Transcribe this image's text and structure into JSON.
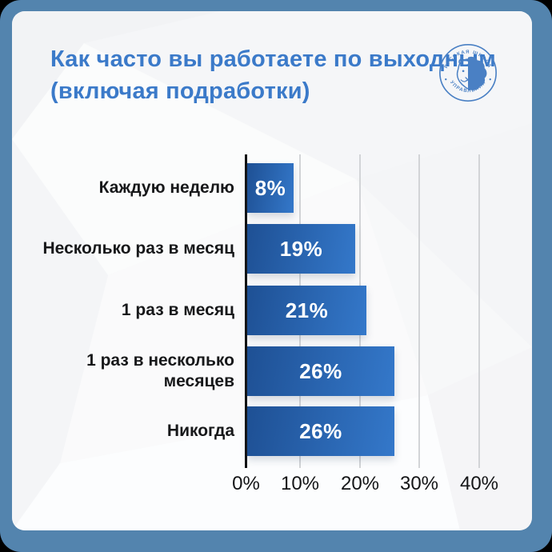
{
  "frame": {
    "background": "#5384ae",
    "card_background": "#f7f8f9"
  },
  "header": {
    "title": "Как часто вы работаете по выходным (включая подработки)",
    "title_color": "#3b7ac9"
  },
  "logo": {
    "name": "russian-school-of-management-seal",
    "arc_top": "РУССКАЯ ШКОЛА",
    "arc_bottom": "УПРАВЛЕНИЯ",
    "color": "#4a80c4",
    "icon": "lion-icon"
  },
  "chart_data": {
    "type": "bar",
    "orientation": "horizontal",
    "title": "Как часто вы работаете по выходным (включая подработки)",
    "categories": [
      "Каждую неделю",
      "Несколько раз в месяц",
      "1 раз в месяц",
      "1 раз в несколько месяцев",
      "Никогда"
    ],
    "values": [
      8,
      19,
      21,
      26,
      26
    ],
    "value_labels": [
      "8%",
      "19%",
      "21%",
      "26%",
      "26%"
    ],
    "x_ticks": [
      "0%",
      "10%",
      "20%",
      "30%",
      "40%"
    ],
    "xlim": [
      0,
      40
    ],
    "grid": true,
    "legend": false,
    "bar_color_start": "#1e5094",
    "bar_color_end": "#3478ca",
    "value_label_color": "#ffffff"
  }
}
